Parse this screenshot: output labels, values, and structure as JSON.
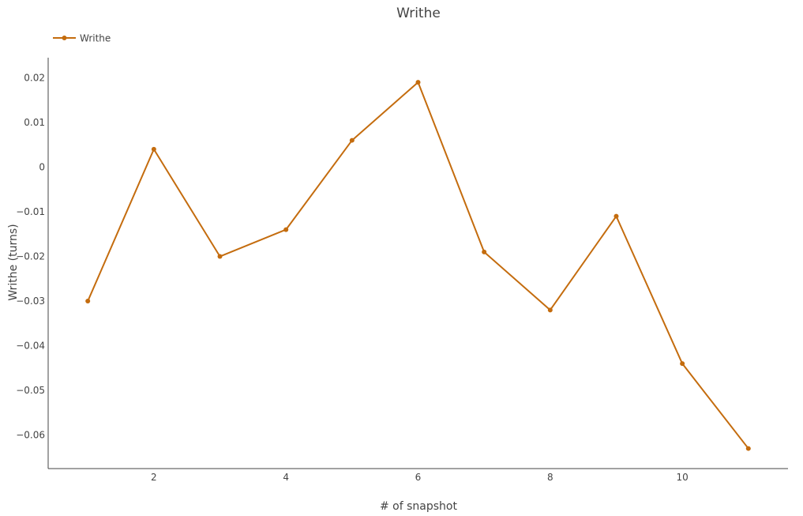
{
  "chart_data": {
    "type": "line",
    "title": "Writhe",
    "xlabel": "# of snapshot",
    "ylabel": "Writhe (turns)",
    "x": [
      1,
      2,
      3,
      4,
      5,
      6,
      7,
      8,
      9,
      10,
      11
    ],
    "series": [
      {
        "name": "Writhe",
        "color": "#c46c0e",
        "values": [
          -0.03,
          0.004,
          -0.02,
          -0.014,
          0.006,
          0.019,
          -0.019,
          -0.032,
          -0.011,
          -0.044,
          -0.063
        ]
      }
    ],
    "xlim": [
      0.4,
      11.6
    ],
    "ylim": [
      -0.0675,
      0.0245
    ],
    "x_ticks": [
      2,
      4,
      6,
      8,
      10
    ],
    "x_tick_labels": [
      "2",
      "4",
      "6",
      "8",
      "10"
    ],
    "y_ticks": [
      0.02,
      0.01,
      0,
      -0.01,
      -0.02,
      -0.03,
      -0.04,
      -0.05,
      -0.06
    ],
    "y_tick_labels": [
      "0.02",
      "0.01",
      "0",
      "−0.01",
      "−0.02",
      "−0.03",
      "−0.04",
      "−0.05",
      "−0.06"
    ],
    "grid": false,
    "legend_position": "top-left"
  }
}
